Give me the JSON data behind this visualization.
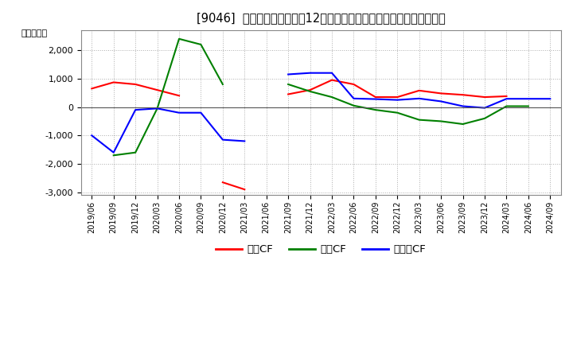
{
  "title": "[9046]  キャッシュフローの12か月移動合計の対前年同期増減額の推移",
  "ylabel": "（百万円）",
  "background_color": "#ffffff",
  "plot_background_color": "#ffffff",
  "grid_color": "#999999",
  "x_labels": [
    "2019/06",
    "2019/09",
    "2019/12",
    "2020/03",
    "2020/06",
    "2020/09",
    "2020/12",
    "2021/03",
    "2021/06",
    "2021/09",
    "2021/12",
    "2022/03",
    "2022/06",
    "2022/09",
    "2022/12",
    "2023/03",
    "2023/06",
    "2023/09",
    "2023/12",
    "2024/03",
    "2024/06",
    "2024/09"
  ],
  "eigyo_cf": [
    650,
    870,
    800,
    600,
    400,
    null,
    -2650,
    -2900,
    null,
    450,
    600,
    950,
    800,
    350,
    350,
    580,
    480,
    430,
    350,
    380,
    null,
    null
  ],
  "toshi_cf": [
    null,
    -1700,
    -1600,
    -50,
    2400,
    2200,
    800,
    null,
    null,
    800,
    550,
    350,
    50,
    -100,
    -200,
    -450,
    -500,
    -600,
    -400,
    30,
    30,
    null
  ],
  "free_cf": [
    -1000,
    -1600,
    -100,
    -50,
    -200,
    -200,
    -1150,
    -1200,
    null,
    1150,
    1200,
    1200,
    300,
    280,
    250,
    300,
    200,
    30,
    -30,
    290,
    290,
    290
  ],
  "eigyo_color": "#ff0000",
  "toshi_color": "#008000",
  "free_color": "#0000ff",
  "ylim": [
    -3100,
    2700
  ],
  "yticks": [
    -3000,
    -2000,
    -1000,
    0,
    1000,
    2000
  ],
  "legend_eigyo": "営業CF",
  "legend_toshi": "投資CF",
  "legend_free": "フリーCF"
}
